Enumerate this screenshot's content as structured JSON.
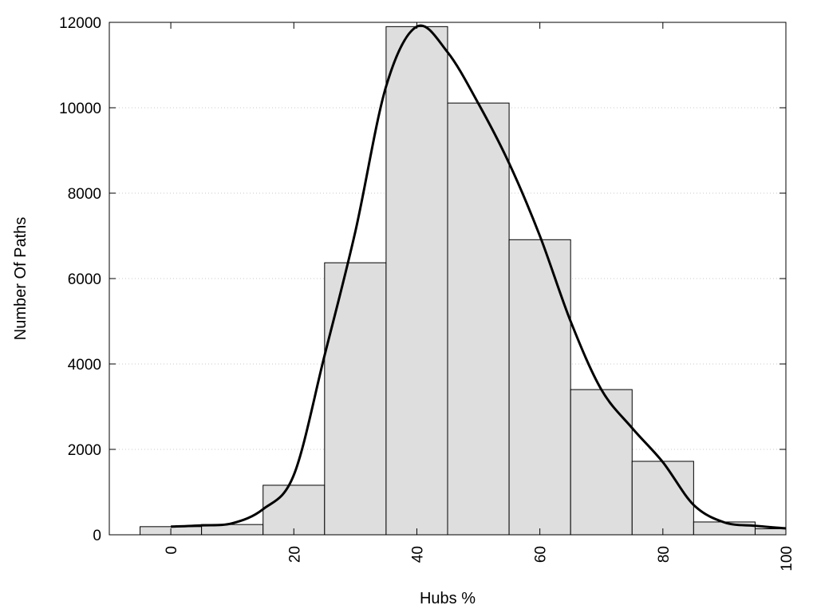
{
  "chart_data": {
    "type": "bar",
    "title": "",
    "xlabel": "Hubs %",
    "ylabel": "Number Of Paths",
    "xlim": [
      -10,
      100
    ],
    "ylim": [
      0,
      12000
    ],
    "x_ticks": [
      0,
      20,
      40,
      60,
      80,
      100
    ],
    "x_tick_labels": [
      "0",
      "20",
      "40",
      "60",
      "80",
      "100"
    ],
    "y_ticks": [
      0,
      2000,
      4000,
      6000,
      8000,
      10000,
      12000
    ],
    "y_tick_labels": [
      "0",
      "2000",
      "4000",
      "6000",
      "8000",
      "10000",
      "12000"
    ],
    "grid": "horizontal dotted",
    "bin_width": 10,
    "bars": {
      "x": [
        0,
        10,
        20,
        30,
        40,
        50,
        60,
        70,
        80,
        90,
        100
      ],
      "values": [
        190,
        240,
        1160,
        6370,
        11900,
        10110,
        6910,
        3400,
        1720,
        300,
        140
      ],
      "fill": "#dedede",
      "edge": "#000000"
    },
    "density_curve": {
      "x": [
        0,
        5,
        10,
        15,
        20,
        25,
        30,
        35,
        40,
        45,
        50,
        55,
        60,
        65,
        70,
        75,
        80,
        85,
        90,
        95,
        100
      ],
      "values": [
        190,
        220,
        270,
        600,
        1400,
        4200,
        7100,
        10500,
        11900,
        11300,
        10100,
        8700,
        7000,
        5000,
        3400,
        2500,
        1700,
        700,
        290,
        210,
        150
      ],
      "color": "#000000"
    }
  }
}
